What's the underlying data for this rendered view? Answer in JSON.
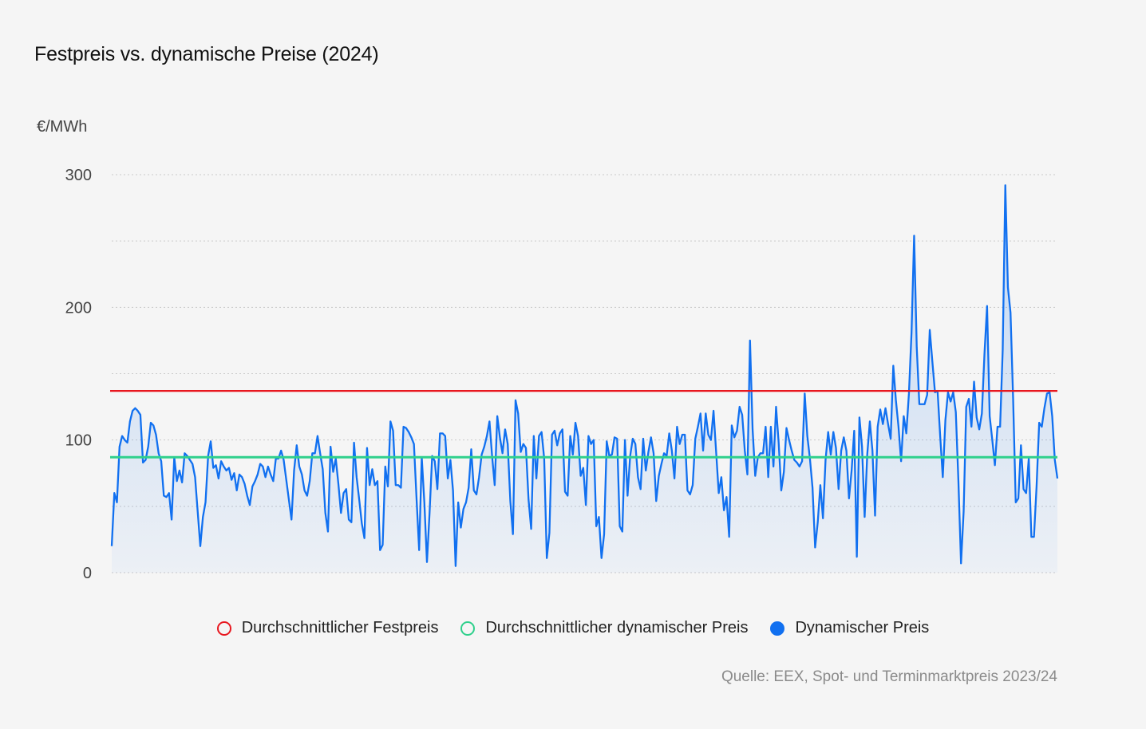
{
  "chart_data": {
    "type": "line",
    "title": "Festpreis vs. dynamische Preise (2024)",
    "ylabel": "€/MWh",
    "xlabel": "",
    "ylim": [
      0,
      300
    ],
    "yticks": [
      0,
      100,
      200,
      300
    ],
    "grid": true,
    "legend_position": "bottom",
    "source": "Quelle: EEX, Spot- und Terminmarktpreis 2023/24",
    "series": [
      {
        "name": "Durchschnittlicher Festpreis",
        "kind": "constant",
        "value": 137,
        "color": "#e8171f"
      },
      {
        "name": "Durchschnittlicher dynamischer Preis",
        "kind": "constant",
        "value": 87,
        "color": "#2fd08c"
      },
      {
        "name": "Dynamischer Preis",
        "kind": "daily",
        "color": "#1170f0",
        "values": [
          20,
          60,
          53,
          95,
          103,
          100,
          98,
          114,
          122,
          124,
          122,
          119,
          83,
          85,
          95,
          113,
          111,
          104,
          90,
          84,
          58,
          57,
          60,
          40,
          87,
          69,
          77,
          68,
          90,
          88,
          85,
          82,
          72,
          46,
          20,
          42,
          53,
          88,
          99,
          79,
          81,
          71,
          84,
          80,
          77,
          79,
          70,
          75,
          62,
          74,
          72,
          67,
          58,
          51,
          65,
          69,
          74,
          82,
          80,
          72,
          80,
          74,
          69,
          86,
          86,
          92,
          85,
          70,
          55,
          40,
          77,
          96,
          80,
          74,
          62,
          58,
          69,
          90,
          90,
          103,
          90,
          78,
          45,
          31,
          95,
          76,
          86,
          67,
          45,
          60,
          63,
          40,
          38,
          98,
          72,
          55,
          37,
          26,
          94,
          66,
          78,
          66,
          69,
          17,
          21,
          80,
          65,
          114,
          107,
          66,
          66,
          64,
          110,
          109,
          106,
          102,
          97,
          56,
          17,
          87,
          53,
          8,
          45,
          88,
          84,
          63,
          105,
          105,
          103,
          71,
          85,
          62,
          5,
          53,
          34,
          48,
          53,
          64,
          93,
          62,
          59,
          72,
          89,
          95,
          103,
          114,
          88,
          66,
          118,
          102,
          90,
          108,
          97,
          54,
          29,
          130,
          120,
          91,
          97,
          94,
          55,
          33,
          103,
          71,
          103,
          106,
          86,
          11,
          30,
          104,
          107,
          96,
          105,
          108,
          61,
          58,
          103,
          89,
          113,
          103,
          73,
          79,
          51,
          103,
          97,
          100,
          35,
          42,
          11,
          29,
          99,
          88,
          89,
          102,
          101,
          35,
          31,
          100,
          58,
          88,
          101,
          97,
          72,
          63,
          101,
          77,
          91,
          102,
          90,
          54,
          73,
          82,
          90,
          88,
          105,
          92,
          71,
          110,
          97,
          104,
          104,
          62,
          59,
          66,
          101,
          110,
          120,
          92,
          120,
          104,
          100,
          122,
          91,
          60,
          72,
          47,
          57,
          27,
          111,
          102,
          107,
          125,
          119,
          92,
          74,
          175,
          108,
          73,
          87,
          90,
          90,
          110,
          72,
          110,
          80,
          125,
          98,
          62,
          76,
          109,
          100,
          92,
          85,
          83,
          80,
          84,
          135,
          103,
          86,
          64,
          19,
          38,
          66,
          41,
          85,
          106,
          89,
          106,
          94,
          63,
          92,
          102,
          92,
          56,
          77,
          107,
          12,
          117,
          95,
          42,
          89,
          114,
          92,
          43,
          110,
          123,
          112,
          124,
          112,
          101,
          156,
          130,
          110,
          84,
          118,
          105,
          135,
          181,
          254,
          170,
          127,
          127,
          127,
          134,
          183,
          159,
          136,
          137,
          103,
          72,
          115,
          136,
          129,
          136,
          121,
          69,
          7,
          46,
          125,
          131,
          110,
          144,
          117,
          108,
          120,
          165,
          201,
          118,
          100,
          81,
          110,
          110,
          168,
          292,
          215,
          196,
          131,
          53,
          56,
          96,
          63,
          60,
          86,
          27,
          27,
          65,
          113,
          110,
          124,
          135,
          136,
          118,
          85,
          71
        ]
      }
    ]
  }
}
